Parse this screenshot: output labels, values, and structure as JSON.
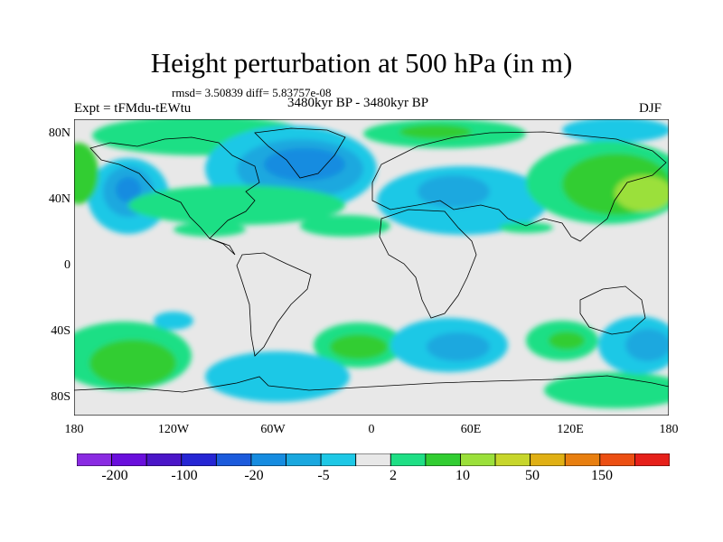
{
  "title": "Height perturbation at 500 hPa (in m)",
  "stats": "rmsd= 3.50839 diff= 5.83757e-08",
  "expt": "Expt = tFMdu-tEWtu",
  "period": "3480kyr BP - 3480kyr BP",
  "season": "DJF",
  "map": {
    "projection": "cylindrical-equidistant",
    "lat_ticks": [
      "80N",
      "40N",
      "0",
      "40S",
      "80S"
    ],
    "lon_ticks": [
      "180",
      "120W",
      "60W",
      "0",
      "60E",
      "120E",
      "180"
    ],
    "background_color": "#e8e8e8",
    "coastline_color": "#000000"
  },
  "colorbar": {
    "colors": [
      "#8a2be2",
      "#6a0fdc",
      "#4b16c8",
      "#2626d4",
      "#1c5bdc",
      "#168ce0",
      "#1aa8df",
      "#1ec8e6",
      "#e8e8e8",
      "#1fdf85",
      "#32cd32",
      "#9be03a",
      "#c7d62b",
      "#e0b014",
      "#e87f10",
      "#ec4f13",
      "#e6201a"
    ],
    "labels": [
      "-200",
      "-100",
      "-20",
      "-5",
      "2",
      "10",
      "50",
      "150"
    ]
  }
}
